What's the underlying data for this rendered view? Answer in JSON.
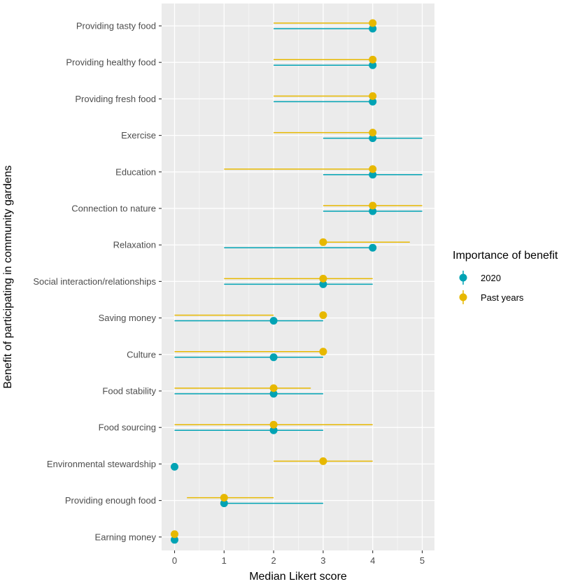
{
  "chart_data": {
    "type": "dot-range",
    "xlabel": "Median Likert score",
    "ylabel": "Benefit of participating in community gardens",
    "xlim": [
      -0.2,
      5.2
    ],
    "xticks": [
      0,
      1,
      2,
      3,
      4,
      5
    ],
    "grid": true,
    "legend": {
      "title": "Importance of benefit",
      "position": "right",
      "entries": [
        {
          "name": "2020",
          "color": "#00A3B4"
        },
        {
          "name": "Past years",
          "color": "#E7B800"
        }
      ]
    },
    "categories": [
      "Providing tasty food",
      "Providing healthy food",
      "Providing fresh food",
      "Exercise",
      "Education",
      "Connection to nature",
      "Relaxation",
      "Social interaction/relationships",
      "Saving money",
      "Culture",
      "Food stability",
      "Food sourcing",
      "Environmental stewardship",
      "Providing enough food",
      "Earning money"
    ],
    "series": [
      {
        "name": "2020",
        "color": "#00A3B4",
        "median": [
          4,
          4,
          4,
          4,
          4,
          4,
          4,
          3,
          2,
          2,
          2,
          2,
          0,
          1,
          0
        ],
        "low": [
          2,
          2,
          2,
          3,
          3,
          3,
          1,
          1,
          0,
          0,
          0,
          0,
          0,
          1,
          0
        ],
        "high": [
          4,
          4,
          4,
          5,
          5,
          5,
          4,
          4,
          3,
          3,
          3,
          3,
          0,
          3,
          0
        ]
      },
      {
        "name": "Past years",
        "color": "#E7B800",
        "median": [
          4,
          4,
          4,
          4,
          4,
          4,
          3,
          3,
          3,
          3,
          2,
          2,
          3,
          1,
          0
        ],
        "low": [
          2,
          2,
          2,
          2,
          1,
          3,
          3,
          1,
          0,
          0,
          0,
          0,
          2,
          0.25,
          0
        ],
        "high": [
          4,
          4,
          4,
          4,
          4,
          5,
          4.75,
          4,
          2,
          3,
          2.75,
          4,
          4,
          2,
          0
        ]
      }
    ]
  }
}
